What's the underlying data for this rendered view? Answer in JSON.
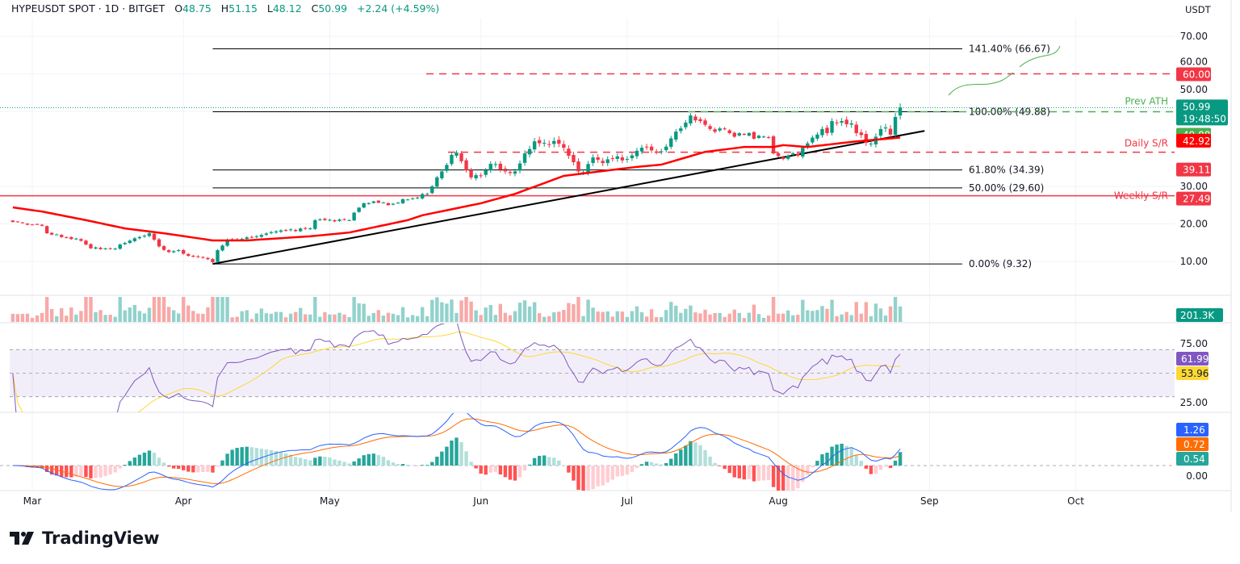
{
  "header": {
    "symbol": "HYPEUSDT SPOT · 1D · BITGET",
    "open_label": "O",
    "open": "48.75",
    "high_label": "H",
    "high": "51.15",
    "low_label": "L",
    "low": "48.12",
    "close_label": "C",
    "close": "50.99",
    "change": "+2.24 (+4.59%)"
  },
  "currency": "USDT",
  "branding": "TradingView",
  "colors": {
    "up": "#089981",
    "down": "#f23645",
    "ma": "#ff0000",
    "rsi": "#7e57c2",
    "rsi_ma": "#fdd835",
    "macd": "#2962ff",
    "signal": "#ff6d00",
    "fib": "#000000",
    "prev_ath": "#4caf50"
  },
  "chart_data": [
    {
      "type": "candlestick",
      "title": "HYPEUSDT SPOT · 1D · BITGET",
      "y_ticks": [
        "70.00",
        "60.00",
        "50.00",
        "30.00",
        "20.00",
        "10.00"
      ],
      "ylim": [
        5,
        72
      ],
      "x_ticks": [
        "Mar",
        "Apr",
        "May",
        "Jun",
        "Jul",
        "Aug",
        "Sep",
        "Oct"
      ],
      "x_tick_dates": [
        "2025-03-01",
        "2025-04-01",
        "2025-05-01",
        "2025-06-01",
        "2025-07-01",
        "2025-08-01",
        "2025-09-01",
        "2025-10-01"
      ],
      "close_path": [
        [
          "2025-02-25",
          20.5
        ],
        [
          "2025-03-03",
          19.5
        ],
        [
          "2025-03-04",
          17.5
        ],
        [
          "2025-03-11",
          15.5
        ],
        [
          "2025-03-13",
          13.5
        ],
        [
          "2025-03-18",
          13.4
        ],
        [
          "2025-03-19",
          14.5
        ],
        [
          "2025-03-23",
          16.5
        ],
        [
          "2025-03-25",
          17.5
        ],
        [
          "2025-03-27",
          14
        ],
        [
          "2025-03-29",
          12.5
        ],
        [
          "2025-03-31",
          13
        ],
        [
          "2025-04-02",
          11.5
        ],
        [
          "2025-04-05",
          11
        ],
        [
          "2025-04-07",
          9.8
        ],
        [
          "2025-04-08",
          13
        ],
        [
          "2025-04-10",
          15.8
        ],
        [
          "2025-04-13",
          16
        ],
        [
          "2025-04-16",
          16.7
        ],
        [
          "2025-04-20",
          18
        ],
        [
          "2025-04-27",
          18.8
        ],
        [
          "2025-04-28",
          21
        ],
        [
          "2025-05-05",
          21
        ],
        [
          "2025-05-06",
          23
        ],
        [
          "2025-05-08",
          25.5
        ],
        [
          "2025-05-10",
          26
        ],
        [
          "2025-05-13",
          25
        ],
        [
          "2025-05-17",
          26.5
        ],
        [
          "2025-05-19",
          27
        ],
        [
          "2025-05-21",
          28
        ],
        [
          "2025-05-22",
          30
        ],
        [
          "2025-05-23",
          32.4
        ],
        [
          "2025-05-24",
          34
        ],
        [
          "2025-05-26",
          38.4
        ],
        [
          "2025-05-27",
          39
        ],
        [
          "2025-05-28",
          36.7
        ],
        [
          "2025-05-30",
          32.4
        ],
        [
          "2025-06-01",
          32.8
        ],
        [
          "2025-06-03",
          36
        ],
        [
          "2025-06-06",
          34
        ],
        [
          "2025-06-08",
          34
        ],
        [
          "2025-06-10",
          38.8
        ],
        [
          "2025-06-12",
          42
        ],
        [
          "2025-06-14",
          41.6
        ],
        [
          "2025-06-17",
          41.4
        ],
        [
          "2025-06-18",
          40.3
        ],
        [
          "2025-06-21",
          34
        ],
        [
          "2025-06-22",
          33.8
        ],
        [
          "2025-06-24",
          37.7
        ],
        [
          "2025-06-26",
          36.2
        ],
        [
          "2025-06-29",
          38
        ],
        [
          "2025-07-01",
          37.3
        ],
        [
          "2025-07-04",
          40.3
        ],
        [
          "2025-07-07",
          39.2
        ],
        [
          "2025-07-09",
          40.6
        ],
        [
          "2025-07-11",
          44.6
        ],
        [
          "2025-07-13",
          47
        ],
        [
          "2025-07-14",
          48.9
        ],
        [
          "2025-07-16",
          47.4
        ],
        [
          "2025-07-18",
          45.3
        ],
        [
          "2025-07-21",
          45.3
        ],
        [
          "2025-07-22",
          44.2
        ],
        [
          "2025-07-25",
          43.8
        ],
        [
          "2025-07-30",
          43
        ],
        [
          "2025-07-31",
          38.8
        ],
        [
          "2025-08-02",
          37.3
        ],
        [
          "2025-08-04",
          38.8
        ],
        [
          "2025-08-05",
          38.2
        ],
        [
          "2025-08-06",
          40.3
        ],
        [
          "2025-08-08",
          43
        ],
        [
          "2025-08-10",
          45.3
        ],
        [
          "2025-08-11",
          44.2
        ],
        [
          "2025-08-12",
          47.4
        ],
        [
          "2025-08-14",
          47.4
        ],
        [
          "2025-08-16",
          46.8
        ],
        [
          "2025-08-17",
          44.2
        ],
        [
          "2025-08-19",
          41.6
        ],
        [
          "2025-08-20",
          41.4
        ],
        [
          "2025-08-22",
          45.3
        ],
        [
          "2025-08-23",
          45.7
        ],
        [
          "2025-08-24",
          43.8
        ],
        [
          "2025-08-25",
          48.5
        ],
        [
          "2025-08-26",
          50.99
        ]
      ],
      "moving_average_path": [
        [
          "2025-02-25",
          24.4
        ],
        [
          "2025-03-03",
          23.3
        ],
        [
          "2025-03-12",
          21
        ],
        [
          "2025-03-20",
          18.8
        ],
        [
          "2025-03-28",
          17.5
        ],
        [
          "2025-04-07",
          15.6
        ],
        [
          "2025-04-14",
          15.6
        ],
        [
          "2025-04-27",
          16.7
        ],
        [
          "2025-05-05",
          17.7
        ],
        [
          "2025-05-17",
          21
        ],
        [
          "2025-05-20",
          22.3
        ],
        [
          "2025-06-01",
          25.5
        ],
        [
          "2025-06-08",
          28
        ],
        [
          "2025-06-18",
          32.8
        ],
        [
          "2025-07-03",
          35.2
        ],
        [
          "2025-07-08",
          35.8
        ],
        [
          "2025-07-17",
          39.2
        ],
        [
          "2025-07-25",
          40.5
        ],
        [
          "2025-07-31",
          40.5
        ],
        [
          "2025-08-02",
          41
        ],
        [
          "2025-08-07",
          40.5
        ],
        [
          "2025-08-17",
          42
        ],
        [
          "2025-08-26",
          43
        ]
      ],
      "levels": [
        {
          "label": "141.40% (66.67)",
          "price": 66.67,
          "style": "fib"
        },
        {
          "label": "100.00% (49.88)",
          "price": 49.88,
          "style": "fib"
        },
        {
          "label": "61.80% (34.39)",
          "price": 34.39,
          "style": "fib"
        },
        {
          "label": "50.00% (29.60)",
          "price": 29.6,
          "style": "fib"
        },
        {
          "label": "0.00% (9.32)",
          "price": 9.32,
          "style": "fib"
        },
        {
          "label": "",
          "price": 60.0,
          "style": "red-dashed"
        },
        {
          "label": "Prev ATH",
          "price": 49.88,
          "style": "green-dashed"
        },
        {
          "label": "Daily S/R",
          "price": 39.11,
          "style": "red-dashed"
        },
        {
          "label": "Weekly S/R",
          "price": 27.49,
          "style": "red-solid"
        }
      ],
      "trendline": [
        [
          "2025-04-07",
          9.32
        ],
        [
          "2025-08-31",
          44.8
        ]
      ],
      "price_badges": [
        {
          "value": "60.00",
          "color": "#f23645"
        },
        {
          "value": "50.99",
          "sub": "19:48:50",
          "color": "#089981"
        },
        {
          "value": "49.88",
          "color": "#4caf50"
        },
        {
          "value": "42.92",
          "color": "#ff0000"
        },
        {
          "value": "39.11",
          "color": "#f23645"
        },
        {
          "value": "27.49",
          "color": "#f23645"
        }
      ]
    },
    {
      "type": "bar",
      "name": "Volume",
      "last_value": "201.3K"
    },
    {
      "type": "line",
      "name": "RSI",
      "y_ticks": [
        "75.00",
        "25.00"
      ],
      "ylim": [
        20,
        90
      ],
      "bands": [
        30,
        50,
        70
      ],
      "rsi": "61.99",
      "rsi_ma": "53.96"
    },
    {
      "type": "line",
      "name": "MACD",
      "y_ticks": [
        "0.00"
      ],
      "macd": "1.26",
      "signal": "0.72",
      "histogram": "0.54"
    }
  ]
}
